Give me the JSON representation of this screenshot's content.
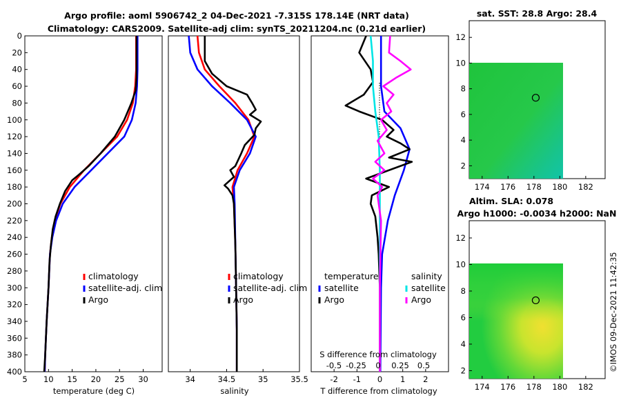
{
  "chart_data": [
    {
      "type": "line",
      "panel": "temperature",
      "title_line1": "Argo profile: aoml 5906742_2 04-Dec-2021 -7.315S 178.14E (NRT data)",
      "title_line2": "Climatology: CARS2009. Satellite-adj clim: synTS_20211204.nc (0.21d earlier)",
      "xlabel": "temperature (deg C)",
      "ylabel": "",
      "xlim": [
        5,
        34
      ],
      "ylim": [
        400,
        0
      ],
      "xticks": [
        "5",
        "10",
        "15",
        "20",
        "25",
        "30"
      ],
      "yticks": [
        "0",
        "20",
        "40",
        "60",
        "80",
        "100",
        "120",
        "140",
        "160",
        "180",
        "200",
        "220",
        "240",
        "260",
        "280",
        "300",
        "320",
        "340",
        "360",
        "380",
        "400"
      ],
      "legend": [
        "climatology",
        "satellite-adj. clim",
        "Argo"
      ],
      "series": [
        {
          "name": "climatology",
          "color": "#ff0000",
          "points": [
            [
              28.5,
              0
            ],
            [
              28.5,
              40
            ],
            [
              28.3,
              60
            ],
            [
              27.8,
              80
            ],
            [
              26.6,
              100
            ],
            [
              24.5,
              120
            ],
            [
              21,
              140
            ],
            [
              17.5,
              160
            ],
            [
              14.5,
              180
            ],
            [
              12.5,
              200
            ],
            [
              11.3,
              220
            ],
            [
              10.7,
              240
            ],
            [
              10.3,
              260
            ],
            [
              10,
              300
            ],
            [
              9.6,
              340
            ],
            [
              9.3,
              380
            ],
            [
              9.2,
              400
            ]
          ]
        },
        {
          "name": "satellite-adj. clim",
          "color": "#0000ff",
          "points": [
            [
              28.8,
              0
            ],
            [
              28.8,
              40
            ],
            [
              28.7,
              60
            ],
            [
              28.4,
              80
            ],
            [
              27.6,
              100
            ],
            [
              26,
              120
            ],
            [
              22.5,
              140
            ],
            [
              19,
              160
            ],
            [
              15.5,
              180
            ],
            [
              13,
              200
            ],
            [
              11.6,
              220
            ],
            [
              10.8,
              240
            ],
            [
              10.3,
              260
            ],
            [
              10,
              300
            ],
            [
              9.6,
              340
            ],
            [
              9.3,
              380
            ],
            [
              9.2,
              400
            ]
          ]
        },
        {
          "name": "Argo",
          "color": "#000000",
          "points": [
            [
              28.6,
              0
            ],
            [
              28.6,
              50
            ],
            [
              28.4,
              65
            ],
            [
              27.5,
              80
            ],
            [
              26,
              100
            ],
            [
              24,
              120
            ],
            [
              21,
              140
            ],
            [
              18.5,
              155
            ],
            [
              16.5,
              165
            ],
            [
              15,
              172
            ],
            [
              13.5,
              185
            ],
            [
              12.4,
              200
            ],
            [
              11.5,
              215
            ],
            [
              10.9,
              230
            ],
            [
              10.5,
              250
            ],
            [
              10.2,
              270
            ],
            [
              10,
              300
            ],
            [
              9.6,
              340
            ],
            [
              9.3,
              380
            ],
            [
              9.1,
              400
            ]
          ]
        }
      ]
    },
    {
      "type": "line",
      "panel": "salinity",
      "xlabel": "salinity",
      "xlim": [
        33.7,
        35.5
      ],
      "ylim": [
        400,
        0
      ],
      "xticks": [
        "34",
        "34.5",
        "35",
        "35.5"
      ],
      "legend": [
        "climatology",
        "satellite-adj. clim",
        "Argo"
      ],
      "series": [
        {
          "name": "climatology",
          "color": "#ff0000",
          "points": [
            [
              34.1,
              0
            ],
            [
              34.12,
              20
            ],
            [
              34.2,
              40
            ],
            [
              34.4,
              60
            ],
            [
              34.62,
              80
            ],
            [
              34.8,
              100
            ],
            [
              34.88,
              120
            ],
            [
              34.78,
              140
            ],
            [
              34.65,
              160
            ],
            [
              34.58,
              180
            ],
            [
              34.6,
              200
            ],
            [
              34.62,
              250
            ],
            [
              34.63,
              300
            ],
            [
              34.64,
              350
            ],
            [
              34.64,
              400
            ]
          ]
        },
        {
          "name": "satellite-adj. clim",
          "color": "#0000ff",
          "points": [
            [
              33.98,
              0
            ],
            [
              34.0,
              20
            ],
            [
              34.1,
              40
            ],
            [
              34.3,
              60
            ],
            [
              34.55,
              80
            ],
            [
              34.78,
              100
            ],
            [
              34.9,
              120
            ],
            [
              34.82,
              140
            ],
            [
              34.68,
              160
            ],
            [
              34.6,
              180
            ],
            [
              34.61,
              200
            ],
            [
              34.62,
              250
            ],
            [
              34.63,
              300
            ],
            [
              34.64,
              350
            ],
            [
              34.64,
              400
            ]
          ]
        },
        {
          "name": "Argo",
          "color": "#000000",
          "points": [
            [
              34.2,
              0
            ],
            [
              34.2,
              30
            ],
            [
              34.3,
              45
            ],
            [
              34.5,
              60
            ],
            [
              34.78,
              70
            ],
            [
              34.85,
              80
            ],
            [
              34.9,
              88
            ],
            [
              34.82,
              94
            ],
            [
              34.97,
              102
            ],
            [
              34.9,
              110
            ],
            [
              34.88,
              118
            ],
            [
              34.75,
              130
            ],
            [
              34.7,
              140
            ],
            [
              34.62,
              155
            ],
            [
              34.55,
              160
            ],
            [
              34.6,
              168
            ],
            [
              34.47,
              178
            ],
            [
              34.52,
              182
            ],
            [
              34.58,
              190
            ],
            [
              34.6,
              200
            ],
            [
              34.62,
              250
            ],
            [
              34.63,
              300
            ],
            [
              34.64,
              350
            ],
            [
              34.64,
              400
            ]
          ]
        }
      ]
    },
    {
      "type": "line",
      "panel": "differences",
      "xlabel": "T difference from climatology",
      "top_label": "S difference from climatology",
      "xlim": [
        -3,
        3
      ],
      "ylim": [
        400,
        0
      ],
      "xticks": [
        "-2",
        "-1",
        "0",
        "1",
        "2"
      ],
      "s_ticks": [
        "-0.5",
        "-0.25",
        "0",
        "0.25",
        "0.5"
      ],
      "legend_left_title": "temperature",
      "legend_right_title": "salinity",
      "legend": [
        "satellite",
        "Argo",
        "satellite",
        "Argo"
      ],
      "series": [
        {
          "name": "T satellite",
          "color": "#0000ff",
          "points": [
            [
              0.05,
              0
            ],
            [
              0.05,
              60
            ],
            [
              0.2,
              90
            ],
            [
              0.9,
              110
            ],
            [
              1.3,
              135
            ],
            [
              1.05,
              160
            ],
            [
              0.65,
              190
            ],
            [
              0.35,
              220
            ],
            [
              0.1,
              260
            ],
            [
              0.05,
              300
            ],
            [
              0.02,
              400
            ]
          ]
        },
        {
          "name": "T Argo",
          "color": "#000000",
          "points": [
            [
              -0.6,
              0
            ],
            [
              -0.9,
              20
            ],
            [
              -0.4,
              40
            ],
            [
              -0.3,
              55
            ],
            [
              -0.7,
              70
            ],
            [
              -1.5,
              83
            ],
            [
              -0.9,
              90
            ],
            [
              0.1,
              100
            ],
            [
              0.6,
              112
            ],
            [
              0.3,
              120
            ],
            [
              0.9,
              128
            ],
            [
              1.3,
              135
            ],
            [
              0.4,
              145
            ],
            [
              1.4,
              150
            ],
            [
              -0.6,
              170
            ],
            [
              0.4,
              180
            ],
            [
              -0.35,
              190
            ],
            [
              -0.4,
              200
            ],
            [
              -0.2,
              215
            ],
            [
              -0.1,
              240
            ],
            [
              -0.05,
              260
            ],
            [
              0.0,
              300
            ],
            [
              0.0,
              400
            ]
          ]
        },
        {
          "name": "S satellite",
          "color": "#00e5e5",
          "points": [
            [
              -0.4,
              0
            ],
            [
              -0.3,
              30
            ],
            [
              -0.3,
              60
            ],
            [
              -0.2,
              90
            ],
            [
              -0.05,
              120
            ],
            [
              0.0,
              160
            ],
            [
              0.0,
              200
            ],
            [
              0.0,
              400
            ]
          ]
        },
        {
          "name": "S Argo",
          "color": "#ff00ff",
          "points": [
            [
              0.45,
              0
            ],
            [
              0.4,
              20
            ],
            [
              0.9,
              30
            ],
            [
              1.35,
              40
            ],
            [
              0.7,
              50
            ],
            [
              0.15,
              60
            ],
            [
              0.6,
              70
            ],
            [
              0.3,
              80
            ],
            [
              0.5,
              90
            ],
            [
              0.05,
              100
            ],
            [
              0.3,
              112
            ],
            [
              -0.1,
              125
            ],
            [
              0.2,
              140
            ],
            [
              -0.2,
              150
            ],
            [
              0.2,
              160
            ],
            [
              -0.3,
              170
            ],
            [
              0.1,
              180
            ],
            [
              -0.1,
              190
            ],
            [
              0.05,
              220
            ],
            [
              0.0,
              300
            ],
            [
              0.0,
              400
            ]
          ]
        }
      ]
    },
    {
      "type": "heatmap",
      "panel": "sat-sst",
      "title": "sat. SST: 28.8 Argo: 28.4",
      "xlim": [
        173,
        183.5
      ],
      "ylim": [
        1,
        13.3
      ],
      "xticks": [
        "174",
        "176",
        "178",
        "180",
        "182"
      ],
      "yticks": [
        "2",
        "4",
        "6",
        "8",
        "10",
        "12"
      ],
      "marker": [
        178.14,
        7.3
      ]
    },
    {
      "type": "heatmap",
      "panel": "altim-sla",
      "title_line1": "Altim. SLA: 0.078",
      "title_line2": "Argo h1000: -0.0034 h2000: NaN",
      "xlim": [
        173,
        183.5
      ],
      "ylim": [
        1.4,
        13.3
      ],
      "xticks": [
        "174",
        "176",
        "178",
        "180",
        "182"
      ],
      "yticks": [
        "2",
        "4",
        "6",
        "8",
        "10",
        "12"
      ],
      "marker": [
        178.14,
        7.3
      ]
    }
  ],
  "timestamp": "©IMOS 09-Dec-2021 11:42:35",
  "colors": {
    "red": "#ff0000",
    "blue": "#0000ff",
    "black": "#000000",
    "cyan": "#00e5e5",
    "magenta": "#ff00ff"
  }
}
